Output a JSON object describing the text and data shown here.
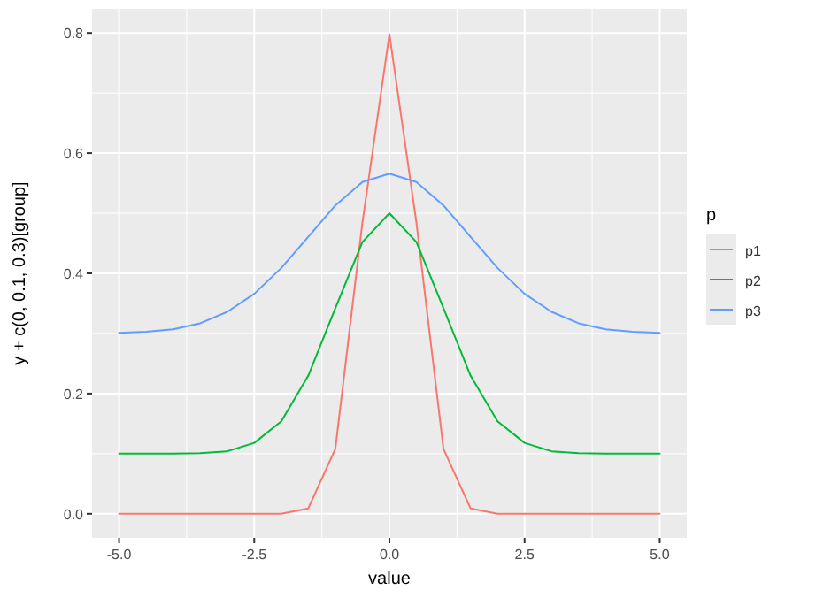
{
  "chart_data": {
    "type": "line",
    "xlabel": "value",
    "ylabel": "y + c(0, 0.1, 0.3)[group]",
    "legend_title": "p",
    "legend": "right",
    "grid": true,
    "x": [
      -5,
      -4.5,
      -4,
      -3.5,
      -3,
      -2.5,
      -2,
      -1.5,
      -1,
      -0.5,
      0,
      0.5,
      1,
      1.5,
      2,
      2.5,
      3,
      3.5,
      4,
      4.5,
      5
    ],
    "xlim": [
      -5.5,
      5.5
    ],
    "xticks": [
      {
        "value": -5,
        "label": "-5.0"
      },
      -2.5,
      {
        "value": 0,
        "label": "0.0"
      },
      2.5,
      {
        "value": 5,
        "label": "5.0"
      }
    ],
    "ylim": [
      -0.04,
      0.84
    ],
    "yticks": [
      {
        "value": 0,
        "label": "0.0"
      },
      0.2,
      0.4,
      0.6,
      0.8
    ],
    "series": [
      {
        "name": "p1",
        "color": "#f8766d",
        "values": [
          0,
          0,
          0,
          0,
          0,
          0,
          0,
          0.009,
          0.108,
          0.484,
          0.798,
          0.484,
          0.108,
          0.009,
          0,
          0,
          0,
          0,
          0,
          0,
          0
        ]
      },
      {
        "name": "p2",
        "color": "#00ba38",
        "values": [
          0.1,
          0.1,
          0.1,
          0.101,
          0.104,
          0.118,
          0.154,
          0.23,
          0.342,
          0.452,
          0.5,
          0.452,
          0.342,
          0.23,
          0.154,
          0.118,
          0.104,
          0.101,
          0.1,
          0.1,
          0.1
        ]
      },
      {
        "name": "p3",
        "color": "#619cff",
        "values": [
          0.301,
          0.303,
          0.307,
          0.317,
          0.336,
          0.366,
          0.409,
          0.461,
          0.513,
          0.552,
          0.566,
          0.552,
          0.513,
          0.461,
          0.409,
          0.366,
          0.336,
          0.317,
          0.307,
          0.303,
          0.301
        ]
      }
    ]
  }
}
